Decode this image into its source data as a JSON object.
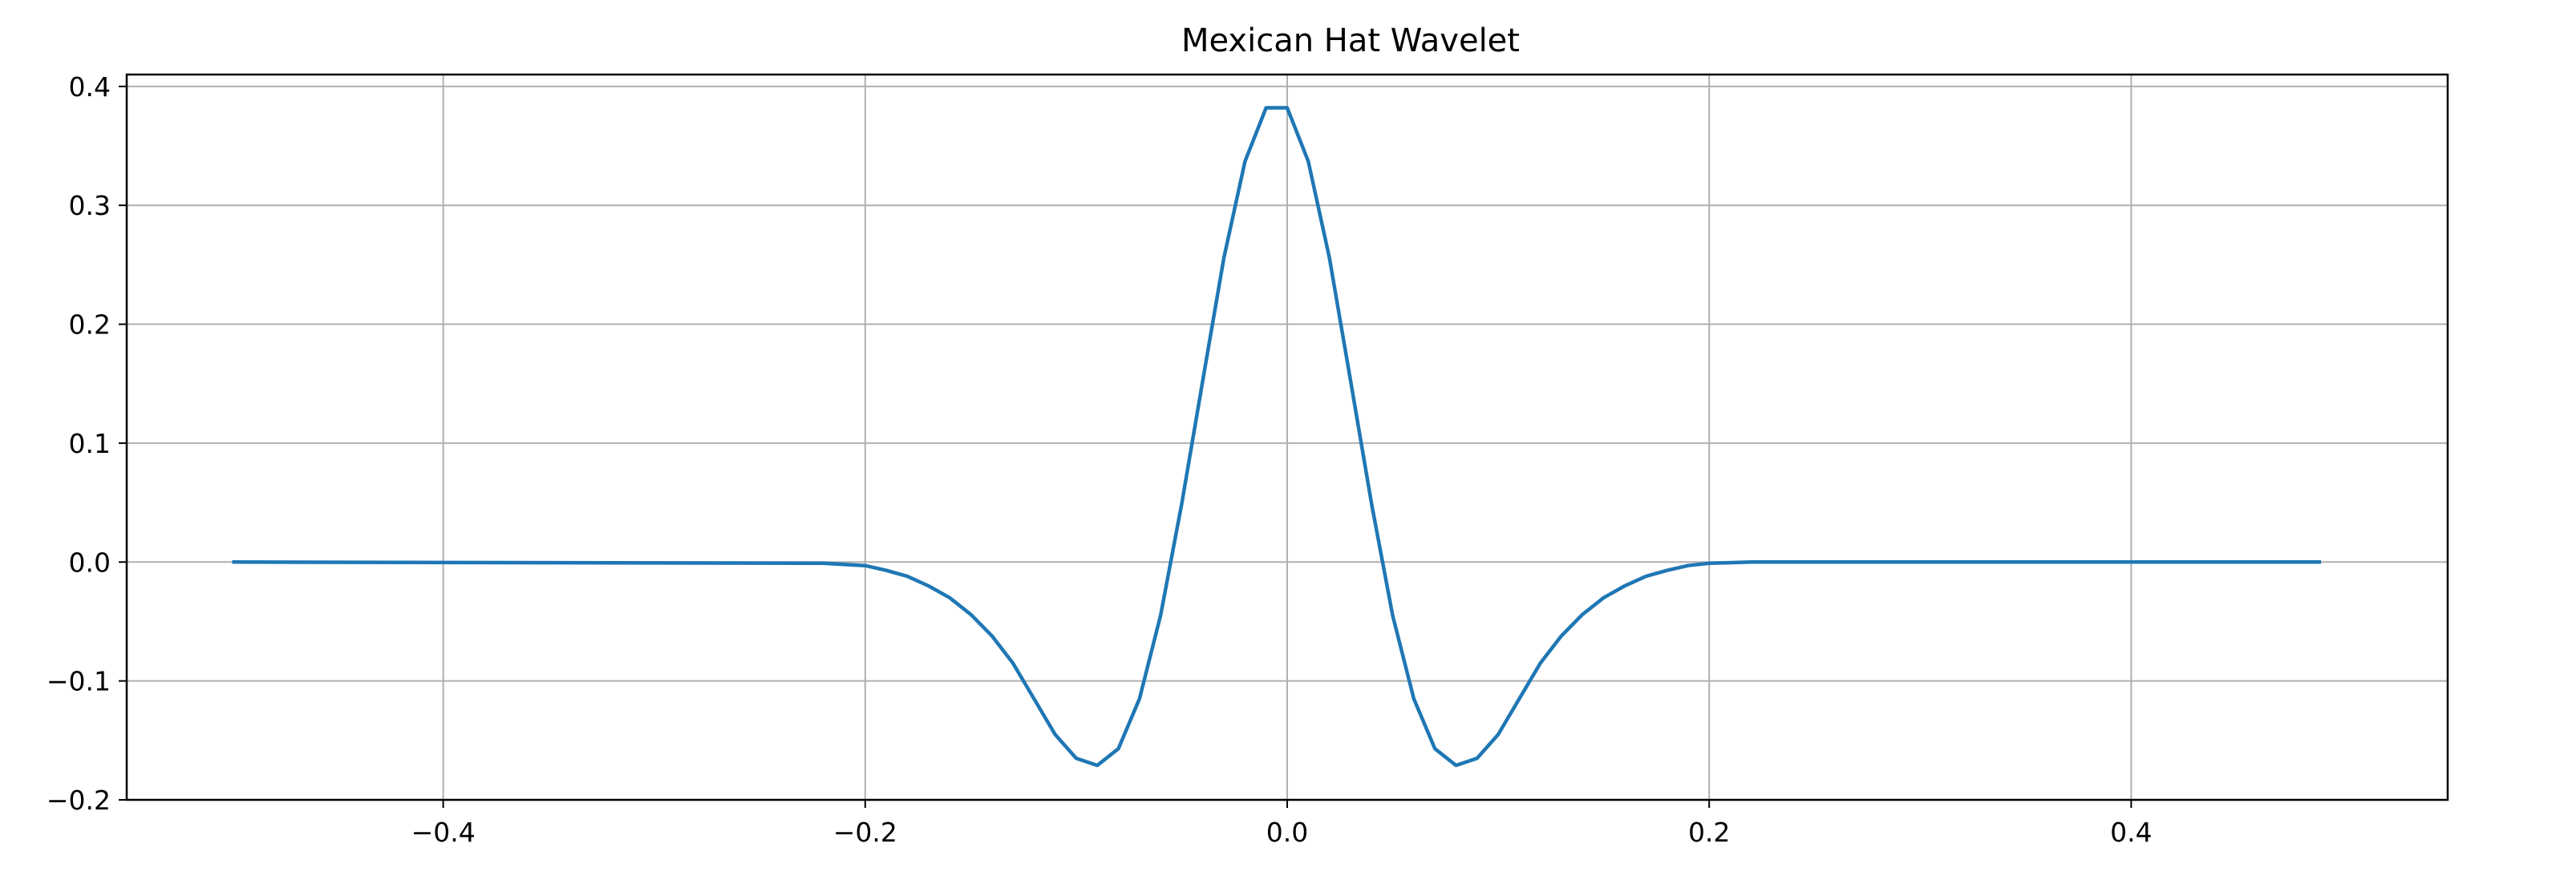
{
  "chart_data": {
    "type": "line",
    "title": "Mexican Hat Wavelet",
    "xlabel": "",
    "ylabel": "",
    "xlim": [
      -0.55,
      0.55
    ],
    "ylim": [
      -0.2,
      0.41
    ],
    "grid": true,
    "x_ticks": [
      -0.4,
      -0.2,
      0.0,
      0.2,
      0.4
    ],
    "x_tick_labels": [
      "−0.4",
      "−0.2",
      "0.0",
      "0.2",
      "0.4"
    ],
    "y_ticks": [
      -0.2,
      -0.1,
      0.0,
      0.1,
      0.2,
      0.3,
      0.4
    ],
    "y_tick_labels": [
      "−0.2",
      "−0.1",
      "0.0",
      "0.1",
      "0.2",
      "0.3",
      "0.4"
    ],
    "series": [
      {
        "color": "#1f77b4",
        "x": [
          -0.5,
          -0.22,
          -0.2,
          -0.19,
          -0.18,
          -0.17,
          -0.16,
          -0.15,
          -0.14,
          -0.13,
          -0.12,
          -0.11,
          -0.1,
          -0.09,
          -0.08,
          -0.07,
          -0.06,
          -0.05,
          -0.04,
          -0.03,
          -0.02,
          -0.01,
          0.0,
          0.01,
          0.02,
          0.03,
          0.04,
          0.05,
          0.06,
          0.07,
          0.08,
          0.09,
          0.1,
          0.11,
          0.12,
          0.13,
          0.14,
          0.15,
          0.16,
          0.17,
          0.18,
          0.19,
          0.2,
          0.22,
          0.49
        ],
        "y": [
          0.0,
          -0.001,
          -0.003,
          -0.007,
          -0.012,
          -0.02,
          -0.03,
          -0.044,
          -0.062,
          -0.085,
          -0.115,
          -0.145,
          -0.165,
          -0.171,
          -0.157,
          -0.115,
          -0.045,
          0.049,
          0.153,
          0.256,
          0.337,
          0.382,
          0.382,
          0.337,
          0.256,
          0.153,
          0.049,
          -0.045,
          -0.115,
          -0.157,
          -0.171,
          -0.165,
          -0.145,
          -0.115,
          -0.085,
          -0.062,
          -0.044,
          -0.03,
          -0.02,
          -0.012,
          -0.007,
          -0.003,
          -0.001,
          0.0,
          0.0
        ]
      }
    ]
  }
}
